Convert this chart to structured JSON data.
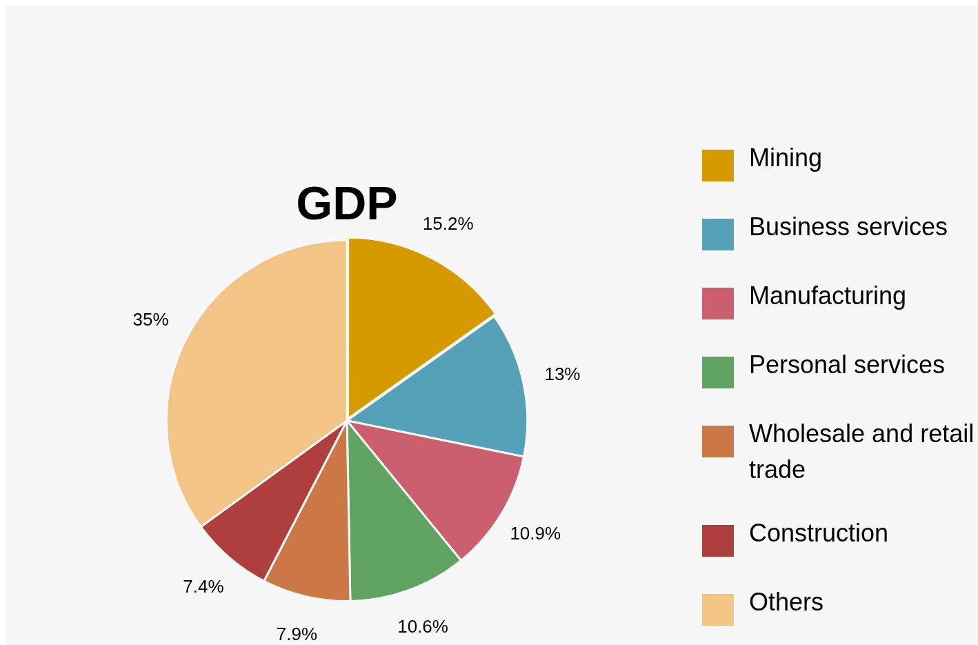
{
  "chart_data": {
    "type": "pie",
    "title": "GDP",
    "categories": [
      "Mining",
      "Business services",
      "Manufacturing",
      "Personal services",
      "Wholesale and retail trade",
      "Construction",
      "Others"
    ],
    "values": [
      15.2,
      13,
      10.9,
      10.6,
      7.9,
      7.4,
      35
    ],
    "colors": [
      "#d49a00",
      "#55a2b8",
      "#cc5f6e",
      "#5fa462",
      "#cc7746",
      "#ae3f3d",
      "#f2c586"
    ],
    "value_labels": [
      "15.2%",
      "13%",
      "10.9%",
      "10.6%",
      "7.9%",
      "7.4%",
      "35%"
    ],
    "legend": "right"
  }
}
